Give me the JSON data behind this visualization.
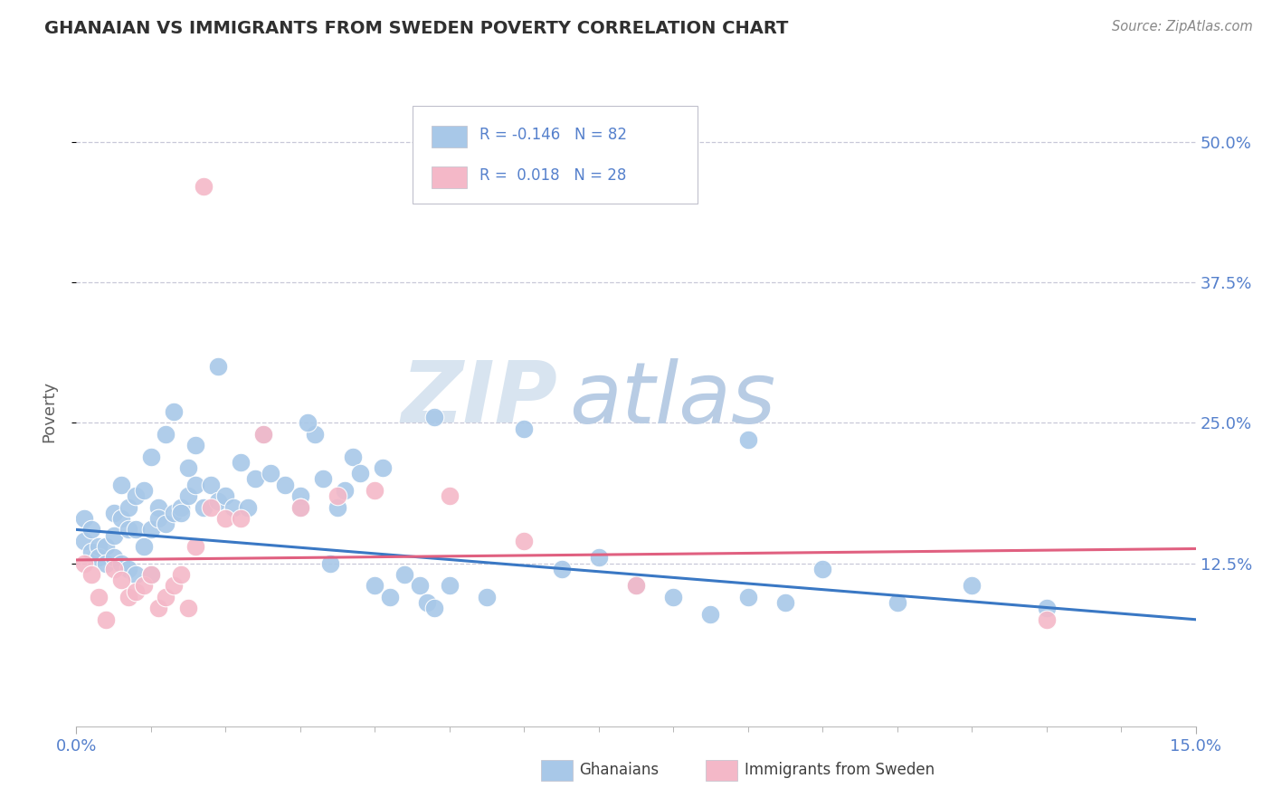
{
  "title": "GHANAIAN VS IMMIGRANTS FROM SWEDEN POVERTY CORRELATION CHART",
  "source": "Source: ZipAtlas.com",
  "ylabel": "Poverty",
  "ytick_labels": [
    "12.5%",
    "25.0%",
    "37.5%",
    "50.0%"
  ],
  "ytick_values": [
    0.125,
    0.25,
    0.375,
    0.5
  ],
  "xmin": 0.0,
  "xmax": 0.15,
  "ymin": -0.02,
  "ymax": 0.54,
  "ghanaian_color": "#a8c8e8",
  "sweden_color": "#f4b8c8",
  "ghanaian_line_color": "#3a78c4",
  "sweden_line_color": "#e06080",
  "background_color": "#ffffff",
  "grid_color": "#c8c8d8",
  "title_color": "#303030",
  "axis_label_color": "#5580cc",
  "watermark_zip_color": "#d8e4f0",
  "watermark_atlas_color": "#b8cce4",
  "legend_text_color": "#5580cc",
  "legend_label_color": "#404040",
  "gh_line_y0": 0.155,
  "gh_line_y1": 0.075,
  "sw_line_y0": 0.128,
  "sw_line_y1": 0.138,
  "ghanaian_x": [
    0.001,
    0.001,
    0.002,
    0.002,
    0.003,
    0.003,
    0.004,
    0.004,
    0.005,
    0.005,
    0.005,
    0.006,
    0.006,
    0.006,
    0.007,
    0.007,
    0.007,
    0.008,
    0.008,
    0.008,
    0.009,
    0.009,
    0.01,
    0.01,
    0.01,
    0.011,
    0.011,
    0.012,
    0.012,
    0.013,
    0.013,
    0.014,
    0.014,
    0.015,
    0.015,
    0.016,
    0.016,
    0.017,
    0.018,
    0.019,
    0.02,
    0.021,
    0.022,
    0.023,
    0.024,
    0.025,
    0.026,
    0.028,
    0.03,
    0.032,
    0.033,
    0.034,
    0.035,
    0.036,
    0.037,
    0.038,
    0.04,
    0.041,
    0.042,
    0.044,
    0.046,
    0.047,
    0.048,
    0.05,
    0.055,
    0.06,
    0.065,
    0.07,
    0.075,
    0.08,
    0.085,
    0.09,
    0.095,
    0.1,
    0.11,
    0.12,
    0.13,
    0.048,
    0.019,
    0.03,
    0.031,
    0.09
  ],
  "ghanaian_y": [
    0.165,
    0.145,
    0.155,
    0.135,
    0.14,
    0.13,
    0.14,
    0.125,
    0.15,
    0.17,
    0.13,
    0.165,
    0.195,
    0.125,
    0.175,
    0.155,
    0.12,
    0.185,
    0.155,
    0.115,
    0.14,
    0.19,
    0.155,
    0.22,
    0.115,
    0.175,
    0.165,
    0.16,
    0.24,
    0.17,
    0.26,
    0.175,
    0.17,
    0.21,
    0.185,
    0.195,
    0.23,
    0.175,
    0.195,
    0.18,
    0.185,
    0.175,
    0.215,
    0.175,
    0.2,
    0.24,
    0.205,
    0.195,
    0.185,
    0.24,
    0.2,
    0.125,
    0.175,
    0.19,
    0.22,
    0.205,
    0.105,
    0.21,
    0.095,
    0.115,
    0.105,
    0.09,
    0.085,
    0.105,
    0.095,
    0.245,
    0.12,
    0.13,
    0.105,
    0.095,
    0.08,
    0.095,
    0.09,
    0.12,
    0.09,
    0.105,
    0.085,
    0.255,
    0.3,
    0.175,
    0.25,
    0.235
  ],
  "sweden_x": [
    0.001,
    0.002,
    0.003,
    0.004,
    0.005,
    0.006,
    0.007,
    0.008,
    0.009,
    0.01,
    0.011,
    0.012,
    0.013,
    0.014,
    0.015,
    0.016,
    0.018,
    0.02,
    0.022,
    0.025,
    0.03,
    0.035,
    0.04,
    0.05,
    0.06,
    0.075,
    0.13,
    0.017
  ],
  "sweden_y": [
    0.125,
    0.115,
    0.095,
    0.075,
    0.12,
    0.11,
    0.095,
    0.1,
    0.105,
    0.115,
    0.085,
    0.095,
    0.105,
    0.115,
    0.085,
    0.14,
    0.175,
    0.165,
    0.165,
    0.24,
    0.175,
    0.185,
    0.19,
    0.185,
    0.145,
    0.105,
    0.075,
    0.46
  ]
}
